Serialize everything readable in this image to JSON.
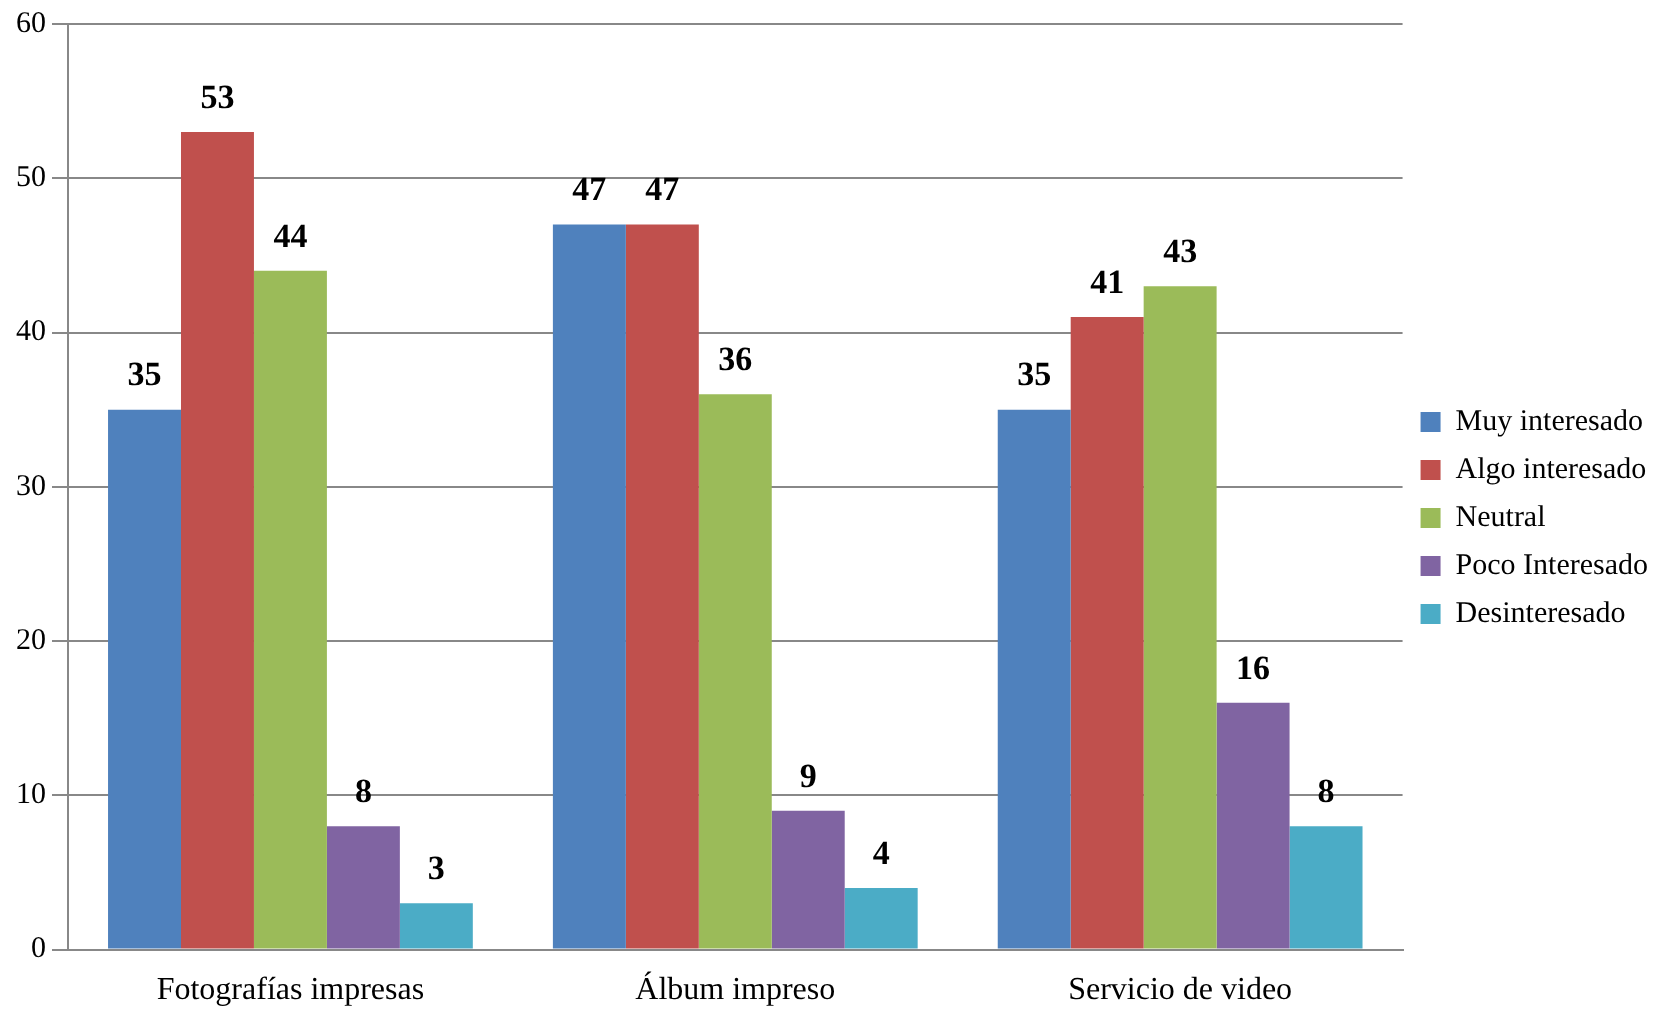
{
  "chart_data": {
    "type": "bar",
    "categories": [
      "Fotografías impresas",
      "Álbum impreso",
      "Servicio de video"
    ],
    "series": [
      {
        "name": "Muy interesado",
        "color": "#4f81bd",
        "values": [
          35,
          47,
          35
        ]
      },
      {
        "name": "Algo interesado",
        "color": "#c0504d",
        "values": [
          53,
          47,
          41
        ]
      },
      {
        "name": "Neutral",
        "color": "#9bbb59",
        "values": [
          44,
          36,
          43
        ]
      },
      {
        "name": "Poco Interesado",
        "color": "#8064a2",
        "values": [
          8,
          9,
          16
        ]
      },
      {
        "name": "Desinteresado",
        "color": "#4bacc6",
        "values": [
          3,
          4,
          8
        ]
      }
    ],
    "ylim": [
      0,
      60
    ],
    "yticks": [
      0,
      10,
      20,
      30,
      40,
      50,
      60
    ],
    "grid": "y",
    "legend": "right",
    "data_labels": true
  }
}
